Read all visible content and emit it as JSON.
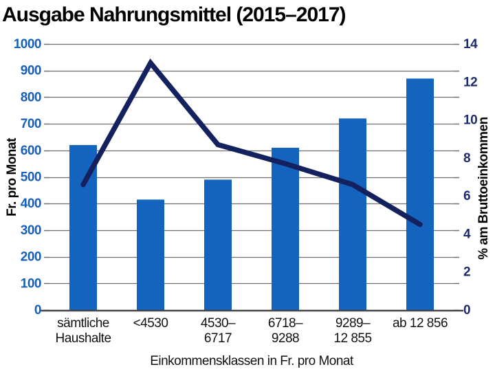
{
  "title": "Ausgabe Nahrungsmittel (2015–2017)",
  "chart_data": {
    "type": "bar+line",
    "title": "Ausgabe Nahrungsmittel (2015–2017)",
    "categories": [
      "sämtliche Haushalte",
      "<4530",
      "4530–6717",
      "6718–9288",
      "9289–12 855",
      "ab 12 856"
    ],
    "category_label_lines": [
      [
        "sämtliche",
        "Haushalte"
      ],
      [
        "<4530"
      ],
      [
        "4530–",
        "6717"
      ],
      [
        "6718–",
        "9288"
      ],
      [
        "9289–",
        "12 855"
      ],
      [
        "ab 12 856"
      ]
    ],
    "series": [
      {
        "name": "Fr. pro Monat",
        "type": "bar",
        "axis": "left",
        "color": "#1463be",
        "values": [
          620,
          415,
          490,
          610,
          720,
          870
        ]
      },
      {
        "name": "% am Bruttoeinkommen",
        "type": "line",
        "axis": "right",
        "color": "#14215f",
        "values": [
          6.6,
          13.0,
          8.7,
          7.7,
          6.6,
          4.5
        ]
      }
    ],
    "xlabel": "Einkommensklassen in Fr. pro Monat",
    "left_axis": {
      "label": "Fr. pro Monat",
      "min": 0,
      "max": 1000,
      "step": 100,
      "color": "#1560bd"
    },
    "right_axis": {
      "label": "% am Bruttoeinkommen",
      "min": 0,
      "max": 14,
      "step": 2,
      "color": "#1c2b6e"
    },
    "grid": true,
    "gridline_color": "#6f6f6f",
    "baseline_color": "#454545",
    "legend": "none"
  }
}
